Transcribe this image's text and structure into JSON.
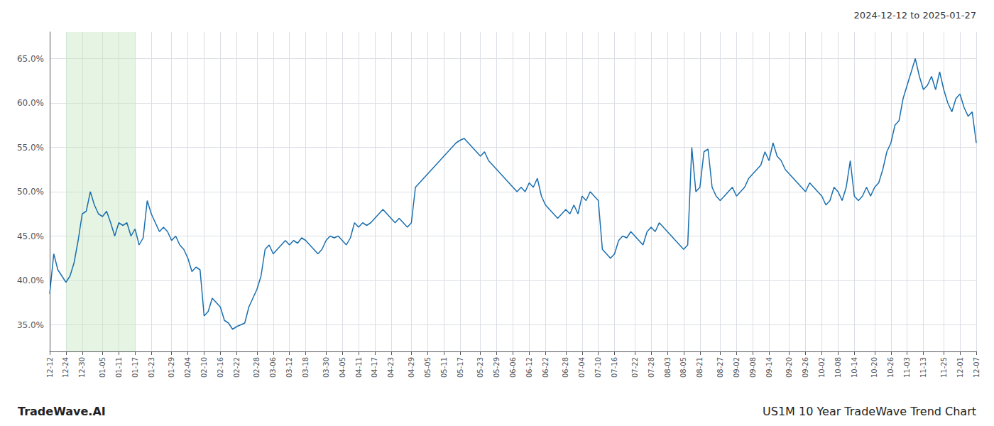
{
  "chart_data": {
    "type": "line",
    "title": "US1M 10 Year TradeWave Trend Chart",
    "subtitle": "2024-12-12 to 2025-01-27",
    "annotations": [
      "TradeWave.AI"
    ],
    "color": "#1a6faf",
    "grid": true,
    "ylim": [
      32.0,
      68.0
    ],
    "yticks": [
      {
        "value": 35.0,
        "label": "35.0%"
      },
      {
        "value": 40.0,
        "label": "40.0%"
      },
      {
        "value": 45.0,
        "label": "45.0%"
      },
      {
        "value": 50.0,
        "label": "50.0%"
      },
      {
        "value": 55.0,
        "label": "55.0%"
      },
      {
        "value": 60.0,
        "label": "60.0%"
      },
      {
        "value": 65.0,
        "label": "65.0%"
      }
    ],
    "shaded_region": {
      "from": "12-24",
      "to": "01-17",
      "color": "#c8e6c0"
    },
    "categories": [
      "12-12",
      null,
      null,
      null,
      "12-24",
      null,
      null,
      null,
      "12-30",
      null,
      null,
      null,
      null,
      "01-05",
      null,
      null,
      null,
      "01-11",
      null,
      null,
      null,
      "01-17",
      null,
      null,
      null,
      "01-23",
      null,
      null,
      null,
      null,
      "01-29",
      null,
      null,
      null,
      "02-04",
      null,
      null,
      null,
      "02-10",
      null,
      null,
      null,
      "02-16",
      null,
      null,
      null,
      "02-22",
      null,
      null,
      null,
      null,
      "02-28",
      null,
      null,
      null,
      "03-06",
      null,
      null,
      null,
      "03-12",
      null,
      null,
      null,
      "03-18",
      null,
      null,
      null,
      null,
      "03-30",
      null,
      null,
      null,
      "04-05",
      null,
      null,
      null,
      "04-11",
      null,
      null,
      null,
      "04-17",
      null,
      null,
      null,
      "04-23",
      null,
      null,
      null,
      null,
      "04-29",
      null,
      null,
      null,
      "05-05",
      null,
      null,
      null,
      "05-11",
      null,
      null,
      null,
      "05-17",
      null,
      null,
      null,
      null,
      "05-23",
      null,
      null,
      null,
      "05-29",
      null,
      null,
      null,
      "06-06",
      null,
      null,
      null,
      "06-12",
      null,
      null,
      null,
      "06-22",
      null,
      null,
      null,
      null,
      "06-28",
      null,
      null,
      null,
      "07-04",
      null,
      null,
      null,
      "07-10",
      null,
      null,
      null,
      "07-16",
      null,
      null,
      null,
      null,
      "07-22",
      null,
      null,
      null,
      "07-28",
      null,
      null,
      null,
      "08-03",
      null,
      null,
      null,
      "08-05",
      null,
      null,
      null,
      "08-21",
      null,
      null,
      null,
      null,
      "08-27",
      null,
      null,
      null,
      "09-02",
      null,
      null,
      null,
      "09-08",
      null,
      null,
      null,
      "09-14",
      null,
      null,
      null,
      null,
      "09-20",
      null,
      null,
      null,
      "09-26",
      null,
      null,
      null,
      "10-02",
      null,
      null,
      null,
      "10-08",
      null,
      null,
      null,
      "10-14",
      null,
      null,
      null,
      null,
      "10-20",
      null,
      null,
      null,
      "10-26",
      null,
      null,
      null,
      "11-03",
      null,
      null,
      null,
      "11-13",
      null,
      null,
      null,
      null,
      "11-25",
      null,
      null,
      null,
      "12-01",
      null,
      null,
      null,
      "12-07"
    ],
    "values": [
      38.5,
      43.0,
      41.2,
      40.5,
      39.8,
      40.5,
      42.0,
      44.5,
      47.5,
      47.8,
      50.0,
      48.5,
      47.5,
      47.2,
      47.8,
      46.5,
      45.0,
      46.5,
      46.2,
      46.5,
      45.0,
      45.8,
      44.0,
      44.8,
      49.0,
      47.5,
      46.5,
      45.5,
      46.0,
      45.5,
      44.5,
      45.0,
      44.0,
      43.5,
      42.5,
      41.0,
      41.5,
      41.2,
      36.0,
      36.5,
      38.0,
      37.5,
      37.0,
      35.5,
      35.2,
      34.5,
      34.8,
      35.0,
      35.2,
      37.0,
      38.0,
      39.0,
      40.5,
      43.5,
      44.0,
      43.0,
      43.5,
      44.0,
      44.5,
      44.0,
      44.5,
      44.2,
      44.8,
      44.5,
      44.0,
      43.5,
      43.0,
      43.5,
      44.5,
      45.0,
      44.8,
      45.0,
      44.5,
      44.0,
      44.8,
      46.5,
      46.0,
      46.5,
      46.2,
      46.5,
      47.0,
      47.5,
      48.0,
      47.5,
      47.0,
      46.5,
      47.0,
      46.5,
      46.0,
      46.5,
      50.5,
      51.0,
      51.5,
      52.0,
      52.5,
      53.0,
      53.5,
      54.0,
      54.5,
      55.0,
      55.5,
      55.8,
      56.0,
      55.5,
      55.0,
      54.5,
      54.0,
      54.5,
      53.5,
      53.0,
      52.5,
      52.0,
      51.5,
      51.0,
      50.5,
      50.0,
      50.5,
      50.0,
      51.0,
      50.5,
      51.5,
      49.5,
      48.5,
      48.0,
      47.5,
      47.0,
      47.5,
      48.0,
      47.5,
      48.5,
      47.5,
      49.5,
      49.0,
      50.0,
      49.5,
      49.0,
      43.5,
      43.0,
      42.5,
      43.0,
      44.5,
      45.0,
      44.8,
      45.5,
      45.0,
      44.5,
      44.0,
      45.5,
      46.0,
      45.5,
      46.5,
      46.0,
      45.5,
      45.0,
      44.5,
      44.0,
      43.5,
      44.0,
      55.0,
      50.0,
      50.5,
      54.5,
      54.8,
      50.5,
      49.5,
      49.0,
      49.5,
      50.0,
      50.5,
      49.5,
      50.0,
      50.5,
      51.5,
      52.0,
      52.5,
      53.0,
      54.5,
      53.5,
      55.5,
      54.0,
      53.5,
      52.5,
      52.0,
      51.5,
      51.0,
      50.5,
      50.0,
      51.0,
      50.5,
      50.0,
      49.5,
      48.5,
      49.0,
      50.5,
      50.0,
      49.0,
      50.5,
      53.5,
      49.5,
      49.0,
      49.5,
      50.5,
      49.5,
      50.5,
      51.0,
      52.5,
      54.5,
      55.5,
      57.5,
      58.0,
      60.5,
      62.0,
      63.5,
      65.0,
      63.0,
      61.5,
      62.0,
      63.0,
      61.5,
      63.5,
      61.5,
      60.0,
      59.0,
      60.5,
      61.0,
      59.5,
      58.5,
      59.0,
      55.5
    ]
  }
}
